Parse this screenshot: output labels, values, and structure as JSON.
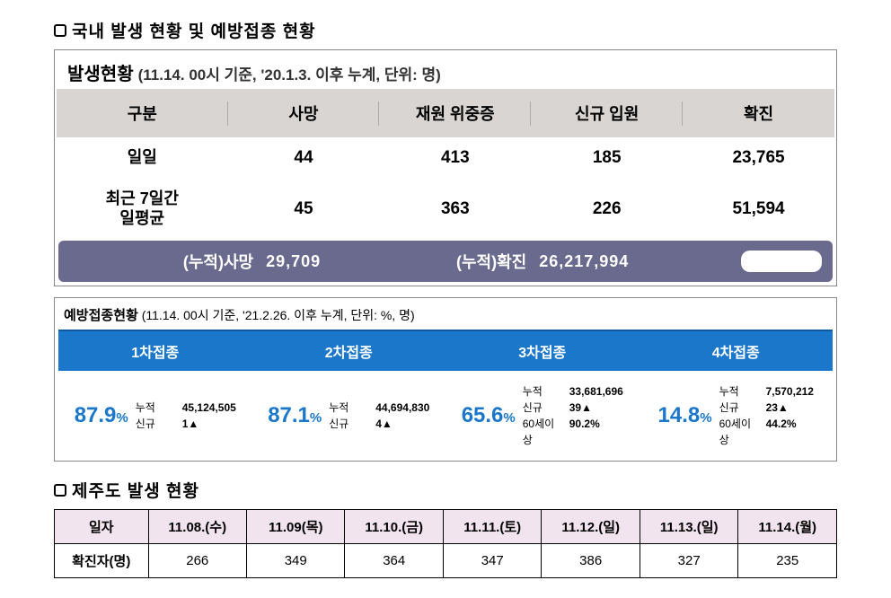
{
  "section1": {
    "title": "국내 발생 현황 및 예방접종 현황",
    "status": {
      "label": "발생현황",
      "note": "(11.14. 00시 기준, '20.1.3. 이후 누계, 단위: 명)",
      "columns": [
        "구분",
        "사망",
        "재원 위중증",
        "신규 입원",
        "확진"
      ],
      "rows": [
        {
          "label": "일일",
          "cells": [
            "44",
            "413",
            "185",
            "23,765"
          ]
        },
        {
          "label": "최근 7일간\n일평균",
          "cells": [
            "45",
            "363",
            "226",
            "51,594"
          ]
        }
      ],
      "cumulative": {
        "death_label": "(누적)사망",
        "death_value": "29,709",
        "confirmed_label": "(누적)확진",
        "confirmed_value": "26,217,994"
      }
    }
  },
  "vaccination": {
    "title_bold": "예방접종현황",
    "title_note": "(11.14. 00시 기준, '21.2.26. 이후 누계, 단위: %, 명)",
    "columns": [
      "1차접종",
      "2차접종",
      "3차접종",
      "4차접종"
    ],
    "data": [
      {
        "pct": "87.9",
        "sub": [
          [
            "누적",
            "45,124,505"
          ],
          [
            "신규",
            "1▲"
          ]
        ]
      },
      {
        "pct": "87.1",
        "sub": [
          [
            "누적",
            "44,694,830"
          ],
          [
            "신규",
            "4▲"
          ]
        ]
      },
      {
        "pct": "65.6",
        "sub": [
          [
            "누적",
            "33,681,696"
          ],
          [
            "신규",
            "39▲"
          ],
          [
            "60세이상",
            "90.2%"
          ]
        ]
      },
      {
        "pct": "14.8",
        "sub": [
          [
            "누적",
            "7,570,212"
          ],
          [
            "신규",
            "23▲"
          ],
          [
            "60세이상",
            "44.2%"
          ]
        ]
      }
    ]
  },
  "section2": {
    "title": "제주도 발생 현황",
    "table": {
      "header_row_label": "일자",
      "dates": [
        "11.08.(수)",
        "11.09(목)",
        "11.10.(금)",
        "11.11.(토)",
        "11.12.(일)",
        "11.13.(일)",
        "11.14.(월)"
      ],
      "data_row_label": "확진자(명)",
      "values": [
        "266",
        "349",
        "364",
        "347",
        "386",
        "327",
        "235"
      ]
    }
  },
  "colors": {
    "header_bg": "#d8d5d2",
    "cum_bar_bg": "#6a6a8f",
    "vax_header_bg": "#1a77c9",
    "vax_pct_color": "#1a77c9",
    "jeju_header_bg": "#f2e4ee"
  }
}
